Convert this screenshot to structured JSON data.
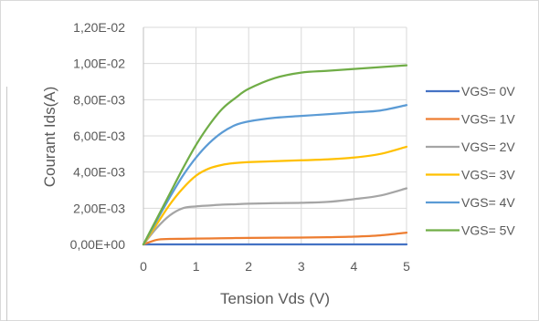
{
  "chart_data": {
    "type": "line",
    "title": "",
    "xlabel": "Tension Vds (V)",
    "ylabel": "Courant Ids(A)",
    "xlim": [
      0,
      5
    ],
    "ylim": [
      0,
      0.012
    ],
    "x_ticks": [
      0,
      1,
      2,
      3,
      4,
      5
    ],
    "x_tick_labels": [
      "0",
      "1",
      "2",
      "3",
      "4",
      "5"
    ],
    "y_ticks": [
      0,
      0.002,
      0.004,
      0.006,
      0.008,
      0.01,
      0.012
    ],
    "y_tick_labels": [
      "0,00E+00",
      "2,00E-03",
      "4,00E-03",
      "6,00E-03",
      "8,00E-03",
      "1,00E-02",
      "1,20E-02"
    ],
    "grid": "vertical-and-horizontal",
    "legend_position": "right",
    "x": [
      0,
      0.25,
      0.5,
      0.75,
      1,
      1.25,
      1.5,
      1.75,
      2,
      2.5,
      3,
      3.5,
      4,
      4.5,
      5
    ],
    "series": [
      {
        "name": "VGS= 0V",
        "color": "#4472C4",
        "values": [
          0,
          0,
          0,
          0,
          0,
          0,
          0,
          0,
          0,
          0,
          0,
          0,
          0,
          0,
          0
        ]
      },
      {
        "name": "VGS= 1V",
        "color": "#ED7D31",
        "values": [
          0,
          0.00025,
          0.0003,
          0.00031,
          0.00032,
          0.00033,
          0.00034,
          0.00035,
          0.00036,
          0.00037,
          0.00038,
          0.0004,
          0.00043,
          0.0005,
          0.00065
        ]
      },
      {
        "name": "VGS= 2V",
        "color": "#A5A5A5",
        "values": [
          0,
          0.0009,
          0.0016,
          0.002,
          0.0021,
          0.00215,
          0.0022,
          0.00222,
          0.00225,
          0.00228,
          0.0023,
          0.00235,
          0.0025,
          0.0027,
          0.0031
        ]
      },
      {
        "name": "VGS= 3V",
        "color": "#FFC000",
        "values": [
          0,
          0.0011,
          0.0022,
          0.0031,
          0.0038,
          0.0042,
          0.0044,
          0.0045,
          0.00455,
          0.0046,
          0.00465,
          0.0047,
          0.0048,
          0.005,
          0.0054
        ]
      },
      {
        "name": "VGS= 4V",
        "color": "#5B9BD5",
        "values": [
          0,
          0.0013,
          0.0026,
          0.0038,
          0.0048,
          0.0056,
          0.0062,
          0.0066,
          0.0068,
          0.007,
          0.0071,
          0.0072,
          0.0073,
          0.0074,
          0.0077
        ]
      },
      {
        "name": "VGS= 5V",
        "color": "#70AD47",
        "values": [
          0,
          0.0014,
          0.0028,
          0.0042,
          0.0055,
          0.0066,
          0.0075,
          0.0081,
          0.0086,
          0.0092,
          0.0095,
          0.0096,
          0.0097,
          0.0098,
          0.0099
        ]
      }
    ]
  }
}
